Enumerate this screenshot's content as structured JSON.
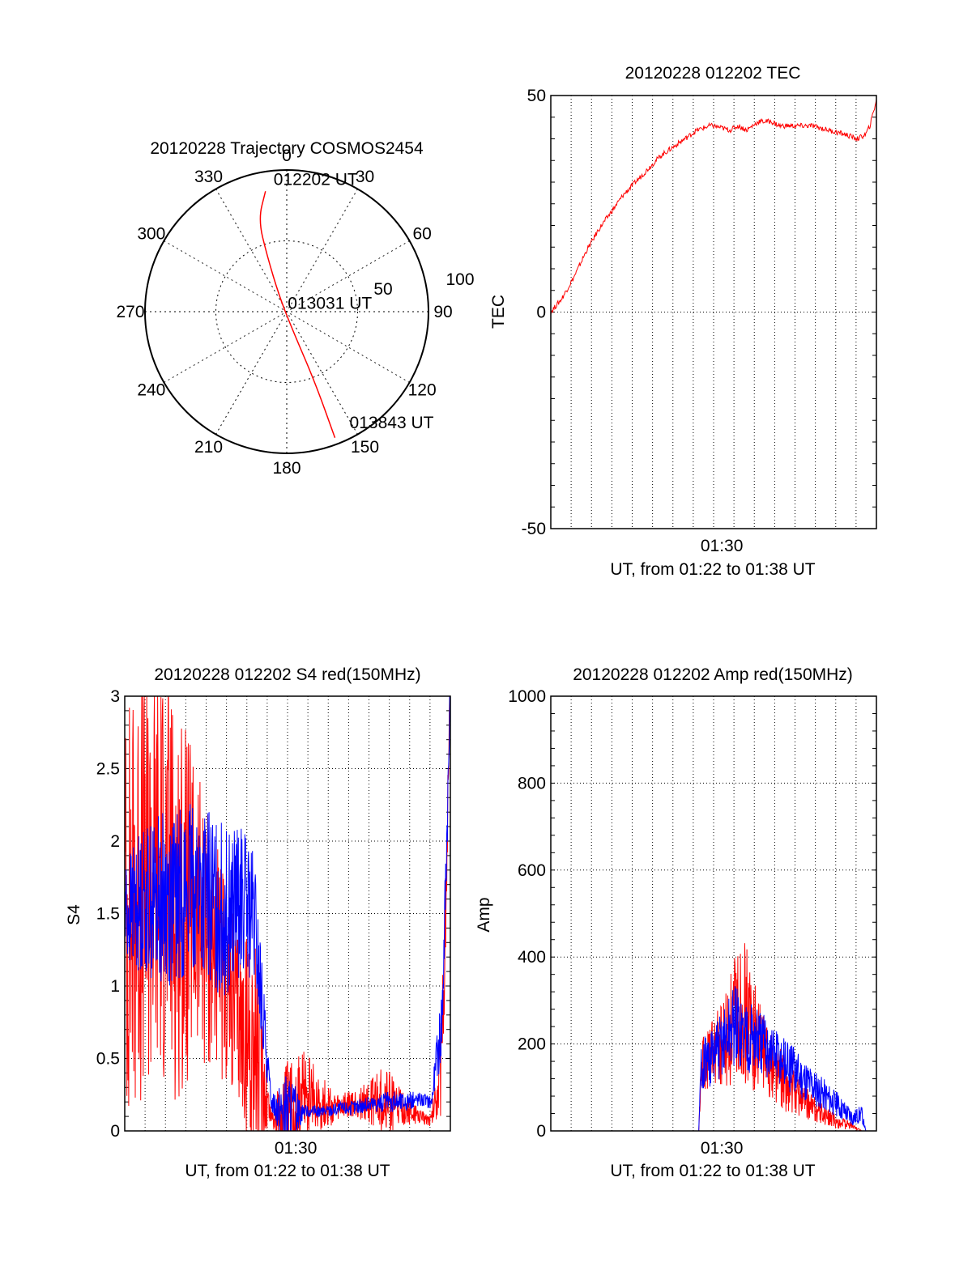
{
  "chart_data": [
    {
      "id": "trajectory",
      "type": "polar",
      "title": "20120228 Trajectory COSMOS2454",
      "azimuth_labels": [
        "0",
        "30",
        "60",
        "90",
        "120",
        "150",
        "180",
        "210",
        "240",
        "270",
        "300",
        "330"
      ],
      "radial_tick_labels": [
        "50",
        "100"
      ],
      "radial_ticks": [
        50,
        100
      ],
      "r_max": 100,
      "line_color": "#ff0000",
      "trajectory": [
        [
          -15,
          85
        ],
        [
          -20,
          65
        ],
        [
          -14,
          40
        ],
        [
          -5,
          10
        ],
        [
          5,
          -15
        ],
        [
          20,
          -50
        ],
        [
          34,
          -89
        ]
      ],
      "time_labels": [
        {
          "text": "012202 UT",
          "at": [
            -15,
            85
          ]
        },
        {
          "text": "013031 UT",
          "at": [
            -5,
            10
          ]
        },
        {
          "text": "013843 UT",
          "at": [
            34,
            -89
          ]
        }
      ]
    },
    {
      "id": "tec",
      "type": "line",
      "title": "20120228 012202 TEC",
      "xlabel": "UT, from 01:22 to 01:38 UT",
      "ylabel": "TEC",
      "xlim": [
        1322,
        1718
      ],
      "ylim": [
        -50,
        50
      ],
      "x_ticks": [
        {
          "value": 1530,
          "label": "01:30"
        }
      ],
      "y_ticks": [
        {
          "value": -50,
          "label": "-50"
        },
        {
          "value": 0,
          "label": "0"
        },
        {
          "value": 50,
          "label": "50"
        }
      ],
      "grid": true,
      "series": [
        {
          "color": "#ff0000",
          "x": [
            1322,
            1335,
            1350,
            1365,
            1380,
            1395,
            1410,
            1425,
            1440,
            1455,
            1470,
            1485,
            1500,
            1515,
            1520,
            1540,
            1550,
            1560,
            1575,
            1590,
            1600,
            1620,
            1640,
            1660,
            1680,
            1695,
            1705,
            1710,
            1718
          ],
          "y": [
            0,
            3,
            8,
            14,
            19,
            23,
            27,
            30,
            33,
            36,
            38,
            40,
            42,
            43,
            43,
            42,
            43,
            42,
            44,
            44,
            43,
            43,
            43,
            42,
            41,
            40,
            41,
            43,
            49
          ]
        }
      ]
    },
    {
      "id": "s4",
      "type": "line",
      "title": "20120228 012202 S4 red(150MHz)",
      "xlabel": "UT, from 01:22 to 01:38 UT",
      "ylabel": "S4",
      "xlim": [
        1322,
        1718
      ],
      "ylim": [
        0,
        3
      ],
      "x_ticks": [
        {
          "value": 1530,
          "label": "01:30"
        }
      ],
      "y_ticks": [
        {
          "value": 0,
          "label": "0"
        },
        {
          "value": 0.5,
          "label": "0.5"
        },
        {
          "value": 1,
          "label": "1"
        },
        {
          "value": 1.5,
          "label": "1.5"
        },
        {
          "value": 2,
          "label": "2"
        },
        {
          "value": 2.5,
          "label": "2.5"
        },
        {
          "value": 3,
          "label": "3"
        }
      ],
      "grid": true,
      "series": [
        {
          "color": "#ff0000",
          "x": [
            1322,
            1345,
            1365,
            1385,
            1405,
            1425,
            1445,
            1465,
            1480,
            1500,
            1520,
            1540,
            1560,
            1580,
            1600,
            1620,
            1640,
            1660,
            1680,
            1695,
            1708,
            1718
          ],
          "y": [
            1.5,
            1.7,
            1.8,
            1.6,
            1.5,
            1.3,
            1.0,
            0.7,
            0.6,
            0.1,
            0.1,
            0.25,
            0.2,
            0.15,
            0.18,
            0.2,
            0.22,
            0.15,
            0.1,
            0.08,
            0.5,
            3.0
          ],
          "spread": [
            1.5,
            1.5,
            1.5,
            1.4,
            1.1,
            0.9,
            0.7,
            0.6,
            0.9,
            0.05,
            0.4,
            0.3,
            0.2,
            0.1,
            0.1,
            0.15,
            0.25,
            0.12,
            0.05,
            0.05,
            0.4,
            0.3
          ]
        },
        {
          "color": "#0000ff",
          "x": [
            1322,
            1345,
            1365,
            1385,
            1405,
            1425,
            1445,
            1465,
            1480,
            1500,
            1520,
            1540,
            1560,
            1580,
            1600,
            1620,
            1640,
            1660,
            1680,
            1695,
            1708,
            1718
          ],
          "y": [
            1.5,
            1.6,
            1.6,
            1.6,
            1.7,
            1.6,
            1.5,
            1.6,
            1.4,
            0.2,
            0.12,
            0.14,
            0.13,
            0.15,
            0.16,
            0.18,
            0.2,
            0.2,
            0.22,
            0.2,
            0.8,
            3.0
          ],
          "spread": [
            0.4,
            0.5,
            0.6,
            0.6,
            0.6,
            0.6,
            0.6,
            0.5,
            0.5,
            0.05,
            0.3,
            0.04,
            0.04,
            0.05,
            0.05,
            0.06,
            0.07,
            0.07,
            0.05,
            0.05,
            0.3,
            0.2
          ]
        }
      ]
    },
    {
      "id": "amp",
      "type": "line",
      "title": "20120228 012202 Amp red(150MHz)",
      "xlabel": "UT, from 01:22 to 01:38 UT",
      "ylabel": "Amp",
      "xlim": [
        1322,
        1718
      ],
      "ylim": [
        0,
        1000
      ],
      "x_ticks": [
        {
          "value": 1530,
          "label": "01:30"
        }
      ],
      "y_ticks": [
        {
          "value": 0,
          "label": "0"
        },
        {
          "value": 200,
          "label": "200"
        },
        {
          "value": 400,
          "label": "400"
        },
        {
          "value": 600,
          "label": "600"
        },
        {
          "value": 800,
          "label": "800"
        },
        {
          "value": 1000,
          "label": "1000"
        }
      ],
      "grid": true,
      "series": [
        {
          "color": "#ff0000",
          "x": [
            1322,
            1400,
            1480,
            1502,
            1505,
            1520,
            1535,
            1545,
            1555,
            1565,
            1575,
            1590,
            1610,
            1630,
            1650,
            1670,
            1690,
            1700,
            1718
          ],
          "y": [
            0,
            0,
            0,
            0,
            150,
            180,
            200,
            250,
            300,
            230,
            200,
            150,
            100,
            70,
            40,
            20,
            10,
            0,
            0
          ],
          "spread": [
            0,
            0,
            0,
            0,
            60,
            80,
            120,
            150,
            180,
            150,
            100,
            80,
            60,
            40,
            25,
            15,
            8,
            0,
            0
          ]
        },
        {
          "color": "#0000ff",
          "x": [
            1322,
            1400,
            1480,
            1502,
            1505,
            1520,
            1535,
            1545,
            1555,
            1565,
            1575,
            1590,
            1610,
            1630,
            1650,
            1670,
            1690,
            1700,
            1705,
            1718
          ],
          "y": [
            0,
            0,
            0,
            0,
            150,
            170,
            210,
            240,
            220,
            220,
            200,
            180,
            150,
            120,
            90,
            60,
            30,
            40,
            0,
            0
          ],
          "spread": [
            0,
            0,
            0,
            0,
            60,
            70,
            80,
            100,
            90,
            90,
            80,
            70,
            60,
            50,
            40,
            30,
            20,
            20,
            0,
            0
          ]
        }
      ]
    }
  ]
}
